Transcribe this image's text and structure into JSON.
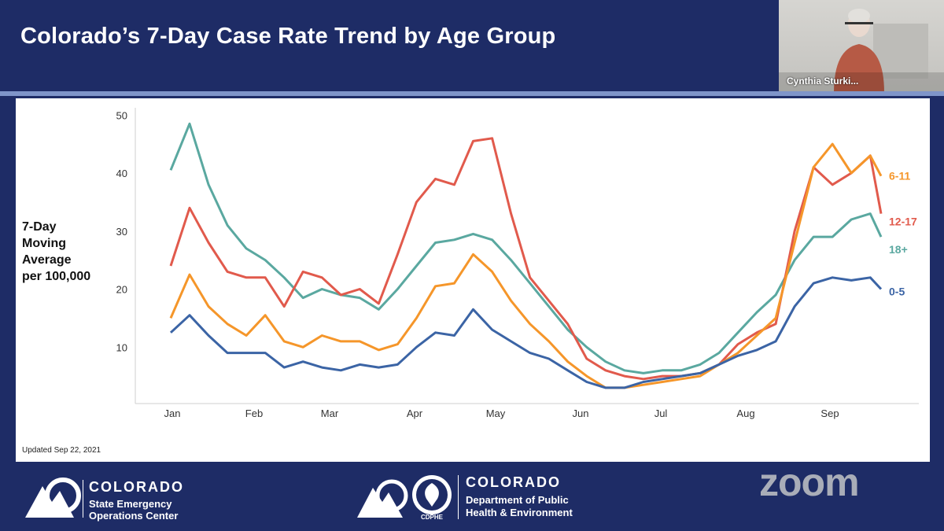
{
  "slide": {
    "title": "Colorado’s 7-Day Case Rate Trend by Age Group",
    "updated": "Updated Sep 22, 2021"
  },
  "video": {
    "speaker_name": "Cynthia Sturki..."
  },
  "footer": {
    "left_org": {
      "title": "COLORADO",
      "line1": "State Emergency",
      "line2": "Operations Center"
    },
    "right_org": {
      "title": "COLORADO",
      "line1": "Department of Public",
      "line2": "Health & Environment",
      "badge": "CDPHE"
    },
    "app_logo": "zoom"
  },
  "chart_data": {
    "type": "line",
    "title": "Colorado’s 7-Day Case Rate Trend by Age Group",
    "ylabel": "7-Day Moving Average per 100,000",
    "ylabel_lines": [
      "7-Day",
      "Moving",
      "Average",
      "per 100,000"
    ],
    "xlabel": "",
    "ylim": [
      0,
      50
    ],
    "yticks": [
      10,
      20,
      30,
      40,
      50
    ],
    "x_ticks": [
      "Jan",
      "Feb",
      "Mar",
      "Apr",
      "May",
      "Jun",
      "Jul",
      "Aug",
      "Sep"
    ],
    "x_unit": "day of year 2021 (Jan 1 = 0)",
    "xlim": [
      0,
      265
    ],
    "grid": false,
    "legend": "inline labels at right end of lines",
    "x": [
      0,
      7,
      14,
      21,
      28,
      35,
      42,
      49,
      56,
      63,
      70,
      77,
      84,
      91,
      98,
      105,
      112,
      119,
      126,
      133,
      140,
      147,
      154,
      161,
      168,
      175,
      182,
      189,
      196,
      203,
      210,
      217,
      224,
      231,
      238,
      245,
      252,
      259,
      263
    ],
    "series": [
      {
        "name": "18+",
        "color": "#5aa8a0",
        "values": [
          40.5,
          48.5,
          38,
          31,
          27,
          25,
          22,
          18.5,
          20,
          19,
          18.5,
          16.5,
          20,
          24,
          28,
          28.5,
          29.5,
          28.5,
          25,
          21,
          17,
          13,
          10,
          7.5,
          6,
          5.5,
          6,
          6,
          7,
          9,
          12.5,
          16,
          19,
          25,
          29,
          29,
          32,
          33,
          29
        ]
      },
      {
        "name": "12-17",
        "color": "#e15a4c",
        "values": [
          24,
          34,
          28,
          23,
          22,
          22,
          17,
          23,
          22,
          19,
          20,
          17.5,
          26,
          35,
          39,
          38,
          45.5,
          46,
          33,
          22,
          18,
          14,
          8,
          6,
          5,
          4.5,
          5,
          5,
          5.5,
          7,
          10.5,
          12.5,
          14,
          30,
          41,
          38,
          40,
          43,
          33
        ]
      },
      {
        "name": "6-11",
        "color": "#f5962a",
        "values": [
          15,
          22.5,
          17,
          14,
          12,
          15.5,
          11,
          10,
          12,
          11,
          11,
          9.5,
          10.5,
          15,
          20.5,
          21,
          26,
          23,
          18,
          14,
          11,
          7.5,
          5,
          3,
          3,
          3.5,
          4,
          4.5,
          5,
          7,
          9,
          12,
          15,
          28,
          41,
          45,
          40,
          43,
          39.5
        ]
      },
      {
        "name": "0-5",
        "color": "#3b64a5",
        "values": [
          12.5,
          15.5,
          12,
          9,
          9,
          9,
          6.5,
          7.5,
          6.5,
          6,
          7,
          6.5,
          7,
          10,
          12.5,
          12,
          16.5,
          13,
          11,
          9,
          8,
          6,
          4,
          3,
          3,
          4,
          4.5,
          5,
          5.5,
          7,
          8.5,
          9.5,
          11,
          17,
          21,
          22,
          21.5,
          22,
          20
        ]
      }
    ]
  }
}
